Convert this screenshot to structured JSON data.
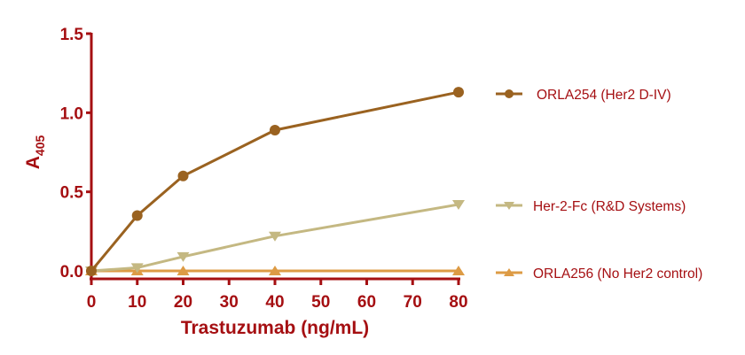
{
  "chart_data": {
    "type": "line",
    "title": "",
    "xlabel": "Trastuzumab (ng/mL)",
    "ylabel": "A405",
    "ylabel_main": "A",
    "ylabel_sub": "405",
    "x": [
      0,
      10,
      20,
      40,
      80
    ],
    "xticks": [
      0,
      10,
      20,
      30,
      40,
      50,
      60,
      70,
      80
    ],
    "xtick_labels": [
      "0",
      "10",
      "20",
      "30",
      "40",
      "50",
      "60",
      "70",
      "80"
    ],
    "yticks": [
      0.0,
      0.5,
      1.0,
      1.5
    ],
    "ytick_labels": [
      "0.0",
      "0.5",
      "1.0",
      "1.5"
    ],
    "xlim": [
      0,
      80
    ],
    "ylim": [
      0,
      1.5
    ],
    "grid": false,
    "legend_position": "right",
    "series": [
      {
        "name": "ORLA254 (Her2 D-IV)",
        "marker": "circle",
        "color": "#9a6220",
        "values": [
          0.0,
          0.35,
          0.6,
          0.89,
          1.13
        ]
      },
      {
        "name": "Her-2-Fc (R&D Systems)",
        "marker": "triangle-down",
        "color": "#c4b882",
        "values": [
          0.0,
          0.02,
          0.09,
          0.22,
          0.42
        ]
      },
      {
        "name": "ORLA256 (No Her2 control)",
        "marker": "triangle-up",
        "color": "#dd9b45",
        "values": [
          0.0,
          0.0,
          0.0,
          0.0,
          0.0
        ]
      }
    ],
    "axis_color": "#a50f12"
  }
}
